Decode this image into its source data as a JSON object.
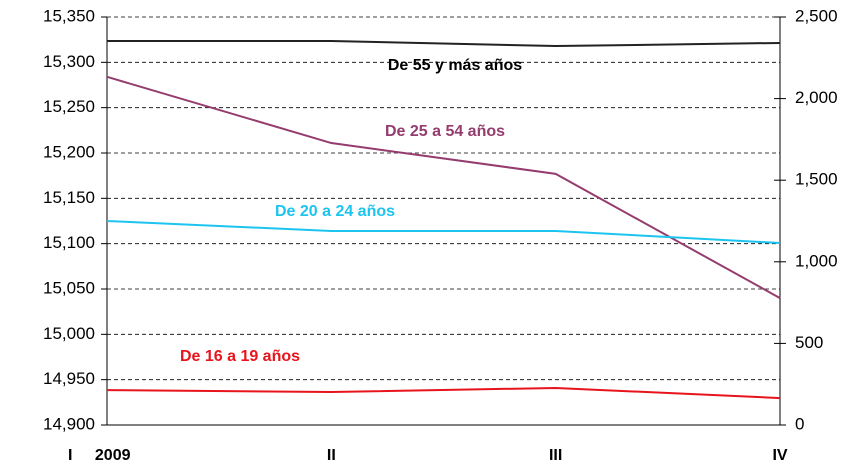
{
  "chart_data": {
    "type": "line",
    "categories": [
      "I 2009",
      "II",
      "III",
      "IV"
    ],
    "series": [
      {
        "name": "De 55 y más años",
        "color": "#222222",
        "axis": "y2",
        "values": [
          2353,
          2353,
          2322,
          2341
        ]
      },
      {
        "name": "De 25 a 54 años",
        "color": "#943c6e",
        "axis": "y",
        "values": [
          15284,
          15211,
          15177,
          15040
        ]
      },
      {
        "name": "De 20 a 24 años",
        "color": "#1cc4f0",
        "axis": "y2",
        "values": [
          1250,
          1189,
          1189,
          1115
        ]
      },
      {
        "name": "De 16 a 19 años",
        "color": "#e8141c",
        "axis": "y2",
        "values": [
          214,
          202,
          227,
          165
        ]
      }
    ],
    "ylim": [
      14900,
      15350
    ],
    "yticks": [
      {
        "value": 14900,
        "label": "14,900"
      },
      {
        "value": 14950,
        "label": "14,950"
      },
      {
        "value": 15000,
        "label": "15,000"
      },
      {
        "value": 15050,
        "label": "15,050"
      },
      {
        "value": 15100,
        "label": "15,100"
      },
      {
        "value": 15150,
        "label": "15,150"
      },
      {
        "value": 15200,
        "label": "15,200"
      },
      {
        "value": 15250,
        "label": "15,250"
      },
      {
        "value": 15300,
        "label": "15,300"
      },
      {
        "value": 15350,
        "label": "15,350"
      }
    ],
    "y2lim": [
      0,
      2500
    ],
    "y2ticks": [
      0,
      500,
      {
        "value": 1000,
        "label": "1,000"
      },
      {
        "value": 1500,
        "label": "1,500"
      },
      {
        "value": 2000,
        "label": "2,000"
      },
      {
        "value": 2500,
        "label": "2,500"
      }
    ],
    "grid": true
  }
}
